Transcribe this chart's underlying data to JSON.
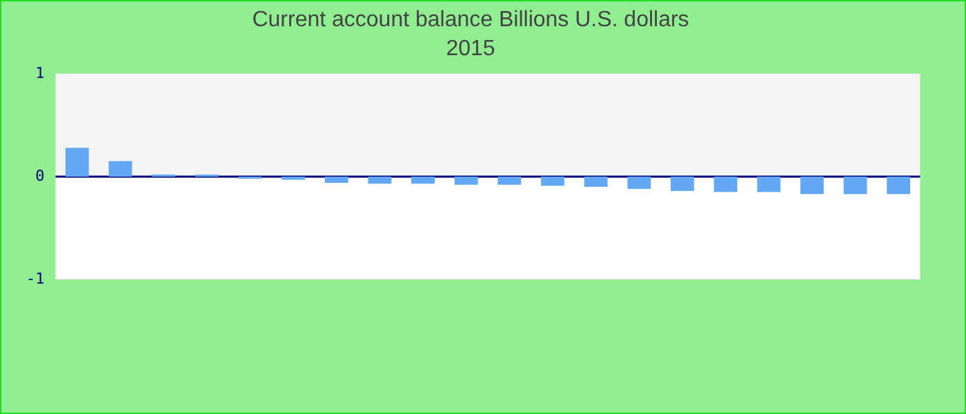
{
  "chart_data": {
    "type": "bar",
    "title": "Current account balance Billions U.S. dollars",
    "subtitle": "2015",
    "categories": [
      null,
      null,
      null,
      null,
      null,
      null,
      null,
      null,
      null,
      null,
      null,
      null,
      null,
      null,
      null,
      null,
      null,
      null,
      null,
      null
    ],
    "values": [
      0.28,
      0.15,
      0.02,
      0.02,
      -0.02,
      -0.03,
      -0.06,
      -0.07,
      -0.07,
      -0.08,
      -0.08,
      -0.09,
      -0.1,
      -0.12,
      -0.14,
      -0.15,
      -0.15,
      -0.17,
      -0.17,
      -0.17
    ],
    "color": "#62a8f4",
    "ylim": [
      -1,
      1
    ],
    "yticks": [
      -1,
      0,
      1
    ],
    "grid": false,
    "legend": false,
    "ref_lines": [
      {
        "axis": "y",
        "value": 0,
        "color": "#000080"
      }
    ]
  }
}
